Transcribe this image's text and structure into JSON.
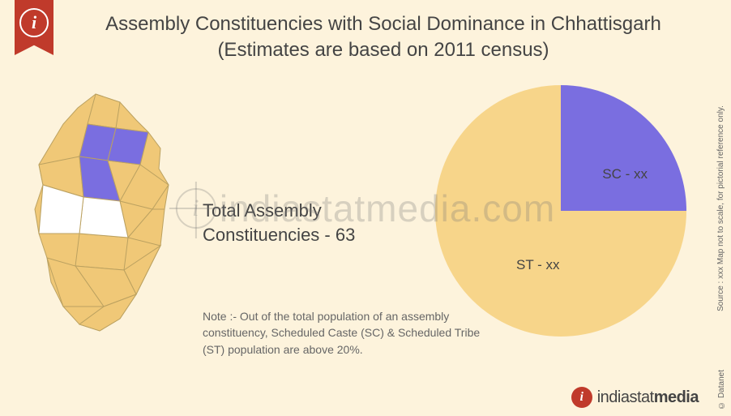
{
  "title": "Assembly Constituencies with Social Dominance in Chhattisgarh (Estimates are based on 2011 census)",
  "center": {
    "line1": "Total Assembly",
    "line2": "Constituencies - 63"
  },
  "note": "Note :- Out of the total population of an assembly constituency, Scheduled Caste (SC) & Scheduled Tribe (ST) population are above  20%.",
  "pie": {
    "type": "pie",
    "background_color": "#fdf3dc",
    "slices": [
      {
        "label": "SC - xx",
        "color": "#7a6ee0",
        "percent": 25
      },
      {
        "label": "ST - xx",
        "color": "#f7d58a",
        "percent": 75
      }
    ],
    "start_angle_deg": 0,
    "label_fontsize": 17,
    "label_color": "#444444"
  },
  "map": {
    "fill_primary": "#f0c877",
    "fill_secondary": "#7a6ee0",
    "fill_blank": "#ffffff",
    "stroke": "#bba160"
  },
  "footer": {
    "brand_prefix": "indiastat",
    "brand_suffix": "media"
  },
  "side_note": "Source : xxx  Map not to scale, for pictorial reference only.",
  "copyright": "© Datanet",
  "watermark": "indiastatmedia.com"
}
